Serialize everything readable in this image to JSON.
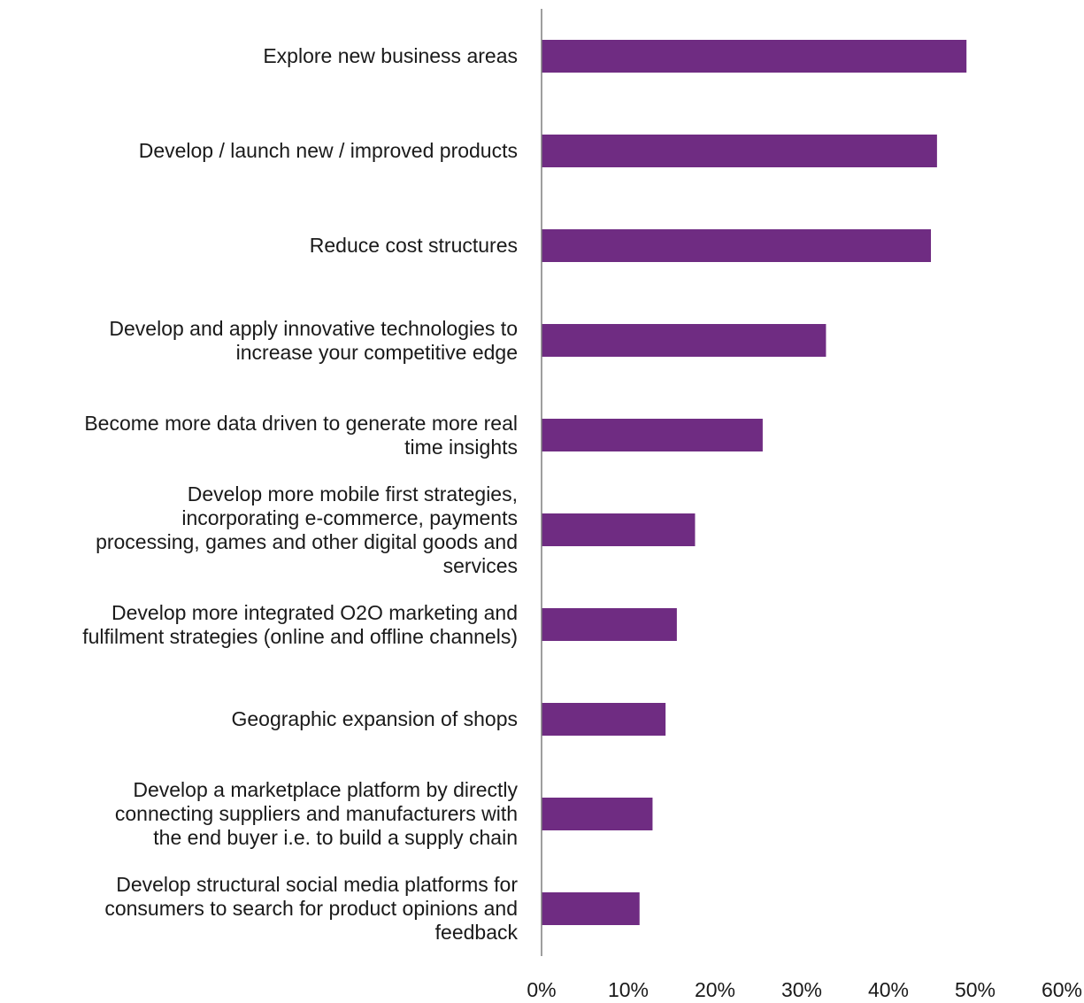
{
  "chart_data": {
    "type": "bar",
    "orientation": "horizontal",
    "title": "",
    "xlabel": "",
    "ylabel": "",
    "categories": [
      "Explore new business areas",
      "Develop / launch new / improved products",
      "Reduce cost structures",
      "Develop and apply innovative technologies to\nincrease your competitive edge",
      "Become more data driven to generate more real\ntime insights",
      "Develop more mobile first strategies,\nincorporating e-commerce, payments\nprocessing, games and other digital goods and\nservices",
      "Develop more integrated O2O marketing and\nfulfilment strategies (online and offline channels)",
      "Geographic expansion of shops",
      "Develop a marketplace platform by directly\nconnecting suppliers and manufacturers with\nthe end buyer i.e. to build a supply chain",
      "Develop structural social media platforms for\nconsumers to search for product opinions and\nfeedback"
    ],
    "values": [
      49,
      45.6,
      44.9,
      32.8,
      25.5,
      17.7,
      15.6,
      14.3,
      12.8,
      11.3
    ],
    "xlim": [
      0,
      60
    ],
    "ticks": [
      "0%",
      "10%",
      "20%",
      "30%",
      "40%",
      "50%",
      "60%"
    ],
    "grid": false,
    "bar_color": "#6f2c82",
    "axis_color": "#7f7f7f"
  }
}
